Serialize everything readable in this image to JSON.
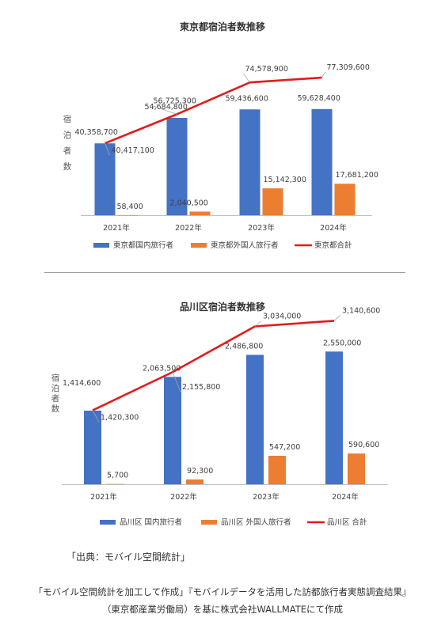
{
  "chart_data": [
    {
      "type": "bar",
      "title": "東京都宿泊者数推移",
      "ylabel": "宿泊者数",
      "categories": [
        "2021年",
        "2022年",
        "2023年",
        "2024年"
      ],
      "series": [
        {
          "name": "東京都国内旅行者",
          "type": "bar",
          "color": "#4472C4",
          "values": [
            40358700,
            54684800,
            59436600,
            59628400
          ],
          "labels": [
            "40,358,700",
            "54,684,800",
            "59,436,600",
            "59,628,400"
          ]
        },
        {
          "name": "東京都外国人旅行者",
          "type": "bar",
          "color": "#ED7D31",
          "values": [
            58400,
            2040500,
            15142300,
            17681200
          ],
          "labels": [
            "58,400",
            "2,040,500",
            "15,142,300",
            "17,681,200"
          ]
        },
        {
          "name": "東京都合計",
          "type": "line",
          "color": "#E31B1B",
          "values": [
            40417100,
            56725300,
            74578900,
            77309600
          ],
          "labels": [
            "40,417,100",
            "56,725,300",
            "74,578,900",
            "77,309,600"
          ]
        }
      ],
      "ylim": [
        0,
        80000000
      ],
      "grid": false,
      "legend": "bottom"
    },
    {
      "type": "bar",
      "title": "品川区宿泊者数推移",
      "ylabel": "宿泊者数",
      "categories": [
        "2021年",
        "2022年",
        "2023年",
        "2024年"
      ],
      "series": [
        {
          "name": "品川区 国内旅行者",
          "type": "bar",
          "color": "#4472C4",
          "values": [
            1414600,
            2063500,
            2486800,
            2550000
          ],
          "labels": [
            "1,414,600",
            "2,063,500",
            "2,486,800",
            "2,550,000"
          ]
        },
        {
          "name": "品川区 外国人旅行者",
          "type": "bar",
          "color": "#ED7D31",
          "values": [
            5700,
            92300,
            547200,
            590600
          ],
          "labels": [
            "5,700",
            "92,300",
            "547,200",
            "590,600"
          ]
        },
        {
          "name": "品川区 合計",
          "type": "line",
          "color": "#E31B1B",
          "values": [
            1420300,
            2155800,
            3034000,
            3140600
          ],
          "labels": [
            "1,420,300",
            "2,155,800",
            "3,034,000",
            "3,140,600"
          ]
        }
      ],
      "ylim": [
        0,
        3300000
      ],
      "grid": false,
      "legend": "bottom"
    }
  ],
  "source": "「出典：モバイル空間統計」",
  "credit_line1": "「モバイル空間統計を加工して作成」『モバイルデータを活用した訪都旅行者実態調査結果』",
  "credit_line2": "（東京都産業労働局）を基に株式会社WALLMATEにて作成"
}
